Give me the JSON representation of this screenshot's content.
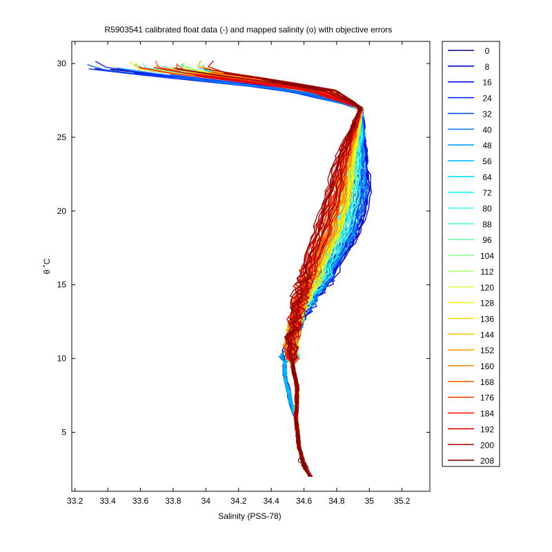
{
  "chart_data": {
    "type": "line",
    "title": "R5903541 calibrated float data (-) and mapped salinity (o) with objective errors",
    "xlabel": "Salinity (PSS-78)",
    "ylabel": "θ ˚C",
    "xlim": [
      33.18,
      35.37
    ],
    "ylim": [
      1.0,
      31.5
    ],
    "xticks": [
      "33.2",
      "33.4",
      "33.6",
      "33.8",
      "34",
      "34.2",
      "34.4",
      "34.6",
      "34.8",
      "35",
      "35.2"
    ],
    "xtick_values": [
      33.2,
      33.4,
      33.6,
      33.8,
      34.0,
      34.2,
      34.4,
      34.6,
      34.8,
      35.0,
      35.2
    ],
    "yticks": [
      "5",
      "10",
      "15",
      "20",
      "25",
      "30"
    ],
    "ytick_values": [
      5,
      10,
      15,
      20,
      25,
      30
    ],
    "grid": false,
    "legend_position": "outside-right",
    "colormap": [
      "#00008f",
      "#0000bf",
      "#0000ef",
      "#0020ff",
      "#0050ff",
      "#0080ff",
      "#00b0ff",
      "#00dfff",
      "#10ffef",
      "#40ffbf",
      "#70ff8f",
      "#a0ff60",
      "#d0ff30",
      "#ffff00",
      "#ffcf00",
      "#ff9f00",
      "#ff7000",
      "#ff4000",
      "#ff1000",
      "#df0000",
      "#af0000",
      "#800000"
    ],
    "series": [
      {
        "name": "0",
        "color": "#00008f"
      },
      {
        "name": "8",
        "color": "#0000bf"
      },
      {
        "name": "16",
        "color": "#0000ef"
      },
      {
        "name": "24",
        "color": "#0020ff"
      },
      {
        "name": "32",
        "color": "#0050ff"
      },
      {
        "name": "40",
        "color": "#0080ff"
      },
      {
        "name": "48",
        "color": "#00a0ff"
      },
      {
        "name": "56",
        "color": "#00c0ff"
      },
      {
        "name": "64",
        "color": "#00dfff"
      },
      {
        "name": "72",
        "color": "#10f0ff"
      },
      {
        "name": "80",
        "color": "#30ffef"
      },
      {
        "name": "88",
        "color": "#50ffcf"
      },
      {
        "name": "96",
        "color": "#70ffaf"
      },
      {
        "name": "104",
        "color": "#90ff8f"
      },
      {
        "name": "112",
        "color": "#b0ff6f"
      },
      {
        "name": "120",
        "color": "#d0ff40"
      },
      {
        "name": "128",
        "color": "#f0ff10"
      },
      {
        "name": "136",
        "color": "#ffe000"
      },
      {
        "name": "144",
        "color": "#ffc000"
      },
      {
        "name": "152",
        "color": "#ffa000"
      },
      {
        "name": "160",
        "color": "#ff8000"
      },
      {
        "name": "168",
        "color": "#ff6000"
      },
      {
        "name": "176",
        "color": "#ff4000"
      },
      {
        "name": "184",
        "color": "#ff1000"
      },
      {
        "name": "192",
        "color": "#df0000"
      },
      {
        "name": "200",
        "color": "#af0000"
      },
      {
        "name": "208",
        "color": "#800000"
      }
    ],
    "profile_path": [
      {
        "x": 34.64,
        "y": 2.0
      },
      {
        "x": 34.6,
        "y": 2.8
      },
      {
        "x": 34.57,
        "y": 4.0
      },
      {
        "x": 34.55,
        "y": 6.0
      },
      {
        "x": 34.56,
        "y": 8.0
      },
      {
        "x": 34.53,
        "y": 9.5
      },
      {
        "x": 34.52,
        "y": 11.0
      },
      {
        "x": 34.55,
        "y": 12.5
      },
      {
        "x": 34.6,
        "y": 14.0
      },
      {
        "x": 34.68,
        "y": 16.0
      },
      {
        "x": 34.78,
        "y": 18.5
      },
      {
        "x": 34.85,
        "y": 21.0
      },
      {
        "x": 34.88,
        "y": 23.5
      },
      {
        "x": 34.92,
        "y": 25.5
      },
      {
        "x": 34.95,
        "y": 27.0
      },
      {
        "x": 34.7,
        "y": 28.2
      },
      {
        "x": 34.2,
        "y": 29.0
      },
      {
        "x": 33.8,
        "y": 29.6
      }
    ],
    "mapped_points": [
      {
        "x": 34.58,
        "y": 3.1
      },
      {
        "x": 34.6,
        "y": 2.8
      },
      {
        "x": 34.61,
        "y": 2.6
      }
    ]
  }
}
